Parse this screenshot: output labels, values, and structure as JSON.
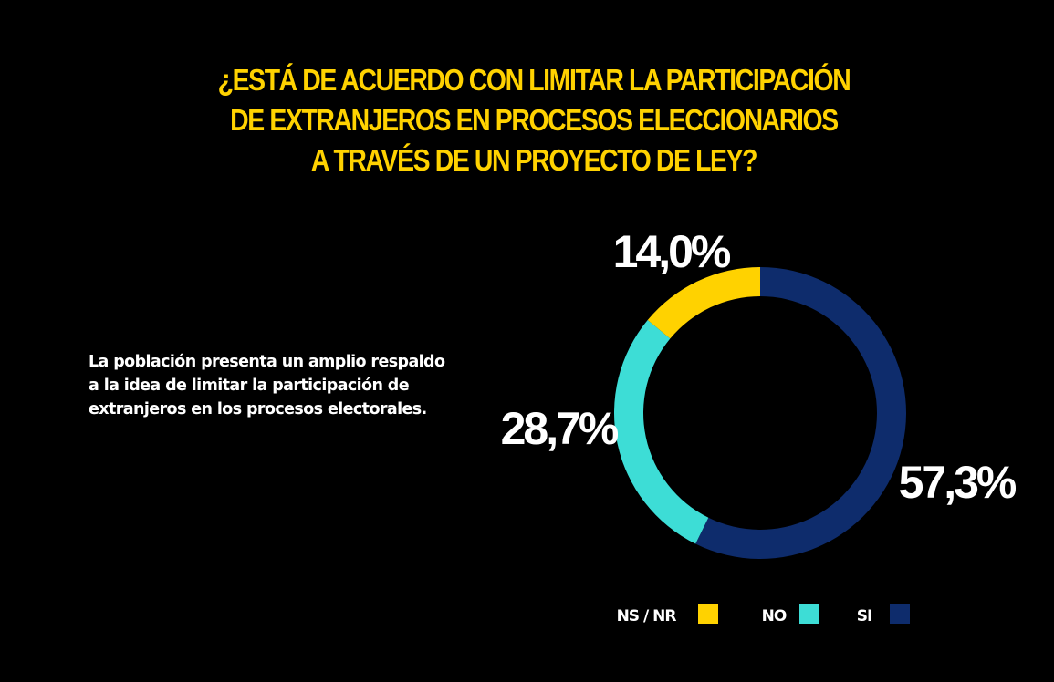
{
  "title_lines": [
    "¿ESTÁ DE ACUERDO CON LIMITAR LA PARTICIPACIÓN",
    "DE EXTRANJEROS EN PROCESOS ELECCIONARIOS",
    "A TRAVÉS DE UN PROYECTO DE LEY?"
  ],
  "description": "La población presenta un amplio respaldo a la idea de limitar la participación de extranjeros en los procesos electorales.",
  "chart_data": {
    "type": "pie",
    "donut": true,
    "title": "¿ESTÁ DE ACUERDO CON LIMITAR LA PARTICIPACIÓN DE EXTRANJEROS EN PROCESOS ELECCIONARIOS A TRAVÉS DE UN PROYECTO DE LEY?",
    "categories": [
      "NS / NR",
      "NO",
      "SI"
    ],
    "values": [
      14.0,
      28.7,
      57.3
    ],
    "data_labels": [
      "14,0%",
      "28,7%",
      "57,3%"
    ],
    "colors": [
      "#FFD200",
      "#3DDDD6",
      "#0E2C6C"
    ],
    "legend_position": "bottom"
  }
}
